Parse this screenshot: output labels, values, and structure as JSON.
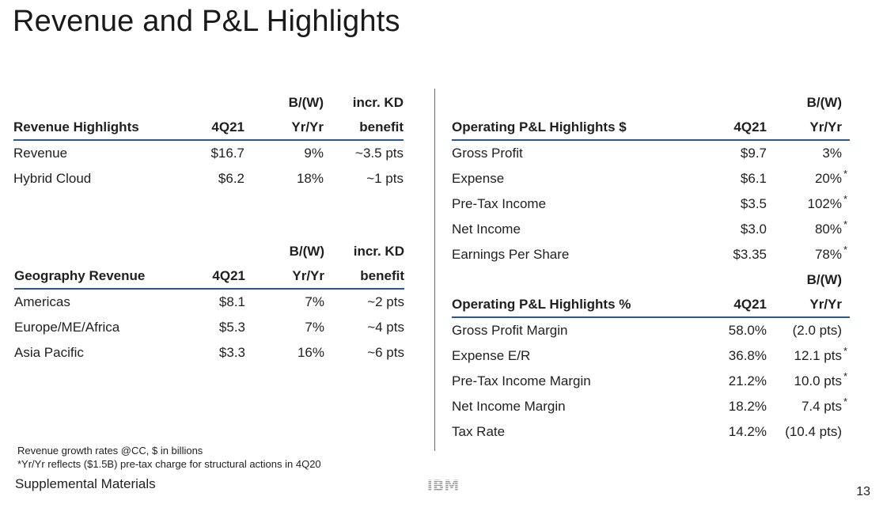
{
  "title": "Revenue and P&L Highlights",
  "brand_color": "#2f5496",
  "revenue_highlights": {
    "top_headers": [
      "",
      "",
      "B/(W)",
      "incr. KD"
    ],
    "headers": [
      "Revenue Highlights",
      "4Q21",
      "Yr/Yr",
      "benefit"
    ],
    "rows": [
      [
        "Revenue",
        "$16.7",
        "9%",
        "~3.5 pts"
      ],
      [
        "Hybrid Cloud",
        "$6.2",
        "18%",
        "~1 pts"
      ]
    ]
  },
  "geography_revenue": {
    "top_headers": [
      "",
      "",
      "B/(W)",
      "incr. KD"
    ],
    "headers": [
      "Geography Revenue",
      "4Q21",
      "Yr/Yr",
      "benefit"
    ],
    "rows": [
      [
        "Americas",
        "$8.1",
        "7%",
        "~2 pts"
      ],
      [
        "Europe/ME/Africa",
        "$5.3",
        "7%",
        "~4 pts"
      ],
      [
        "Asia Pacific",
        "$3.3",
        "16%",
        "~6 pts"
      ]
    ]
  },
  "operating_pl_dollars": {
    "top_headers": [
      "",
      "",
      "B/(W)"
    ],
    "headers": [
      "Operating P&L Highlights $",
      "4Q21",
      "Yr/Yr"
    ],
    "rows": [
      [
        "Gross Profit",
        "$9.7",
        "3%",
        ""
      ],
      [
        "Expense",
        "$6.1",
        "20%",
        "*"
      ],
      [
        "Pre-Tax Income",
        "$3.5",
        "102%",
        "*"
      ],
      [
        "Net Income",
        "$3.0",
        "80%",
        "*"
      ],
      [
        "Earnings Per Share",
        "$3.35",
        "78%",
        "*"
      ]
    ]
  },
  "operating_pl_percent": {
    "top_headers": [
      "",
      "",
      "B/(W)"
    ],
    "headers": [
      "Operating P&L Highlights %",
      "4Q21",
      "Yr/Yr"
    ],
    "rows": [
      [
        "Gross Profit Margin",
        "58.0%",
        "(2.0 pts)",
        ""
      ],
      [
        "Expense E/R",
        "36.8%",
        "12.1 pts",
        "*"
      ],
      [
        "Pre-Tax Income Margin",
        "21.2%",
        "10.0 pts",
        "*"
      ],
      [
        "Net Income Margin",
        "18.2%",
        "7.4 pts",
        "*"
      ],
      [
        "Tax Rate",
        "14.2%",
        "(10.4 pts)",
        ""
      ]
    ]
  },
  "footnotes": [
    "Revenue  growth rates @CC, $ in billions",
    "*Yr/Yr reflects ($1.5B) pre-tax charge for structural actions in 4Q20"
  ],
  "supplemental": "Supplemental Materials",
  "logo_text": "IBM",
  "page_number": "13"
}
